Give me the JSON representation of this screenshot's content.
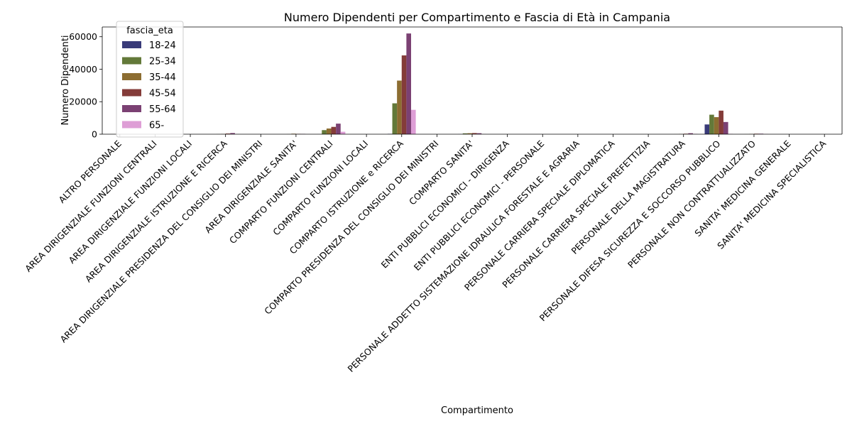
{
  "chart_data": {
    "type": "bar",
    "title": "Numero Dipendenti per Compartimento e Fascia di Età in Campania",
    "xlabel": "Compartimento",
    "ylabel": "Numero Dipendenti",
    "ylim": [
      0,
      66000
    ],
    "yticks": [
      0,
      20000,
      40000,
      60000
    ],
    "grid": false,
    "legend": {
      "title": "fascia_eta",
      "placement": "top-left"
    },
    "categories": [
      "ALTRO PERSONALE",
      "AREA DIRIGENZIALE FUNZIONI CENTRALI",
      "AREA DIRIGENZIALE FUNZIONI LOCALI",
      "AREA DIRIGENZIALE ISTRUZIONE E RICERCA",
      "AREA DIRIGENZIALE PRESIDENZA DEL CONSIGLIO DEI MINISTRI",
      "AREA DIRIGENZIALE SANITA'",
      "COMPARTO FUNZIONI CENTRALI",
      "COMPARTO FUNZIONI LOCALI",
      "COMPARTO ISTRUZIONE e RICERCA",
      "COMPARTO PRESIDENZA DEL CONSIGLIO DEI MINISTRI",
      "COMPARTO SANITA'",
      "ENTI PUBBLICI ECONOMICI - DIRIGENZA",
      "ENTI PUBBLICI ECONOMICI - PERSONALE",
      "PERSONALE ADDETTO SISTEMAZIONE IDRAULICA FORESTALE E AGRARIA",
      "PERSONALE CARRIERA SPECIALE DIPLOMATICA",
      "PERSONALE CARRIERA SPECIALE PREFETTIZIA",
      "PERSONALE DELLA MAGISTRATURA",
      "PERSONALE DIFESA  SICUREZZA E SOCCORSO PUBBLICO",
      "PERSONALE NON CONTRATTUALIZZATO",
      "SANITA' MEDICINA GENERALE",
      "SANITA' MEDICINA SPECIALISTICA"
    ],
    "series": [
      {
        "name": "18-24",
        "color": "#393b79",
        "values": [
          0,
          0,
          0,
          0,
          0,
          0,
          10,
          0,
          200,
          0,
          30,
          0,
          0,
          0,
          0,
          0,
          0,
          6000,
          0,
          0,
          0
        ]
      },
      {
        "name": "25-34",
        "color": "#637939",
        "values": [
          20,
          0,
          0,
          50,
          0,
          50,
          2500,
          0,
          19000,
          0,
          500,
          0,
          0,
          0,
          0,
          0,
          20,
          12000,
          30,
          0,
          0
        ]
      },
      {
        "name": "35-44",
        "color": "#8c6d31",
        "values": [
          30,
          0,
          0,
          150,
          0,
          300,
          3500,
          0,
          33000,
          0,
          600,
          0,
          0,
          0,
          0,
          0,
          100,
          10500,
          150,
          0,
          0
        ]
      },
      {
        "name": "45-54",
        "color": "#843c39",
        "values": [
          40,
          0,
          0,
          400,
          0,
          200,
          4500,
          0,
          48500,
          0,
          700,
          0,
          0,
          0,
          0,
          0,
          300,
          14500,
          300,
          0,
          0
        ]
      },
      {
        "name": "55-64",
        "color": "#7b4173",
        "values": [
          30,
          0,
          0,
          700,
          0,
          150,
          6500,
          0,
          62000,
          0,
          600,
          0,
          0,
          0,
          0,
          0,
          600,
          7500,
          300,
          0,
          0
        ]
      },
      {
        "name": "65-",
        "color": "#de9ed6",
        "values": [
          10,
          0,
          0,
          50,
          0,
          30,
          1500,
          0,
          15000,
          0,
          50,
          0,
          0,
          0,
          0,
          0,
          200,
          200,
          100,
          0,
          0
        ]
      }
    ]
  }
}
